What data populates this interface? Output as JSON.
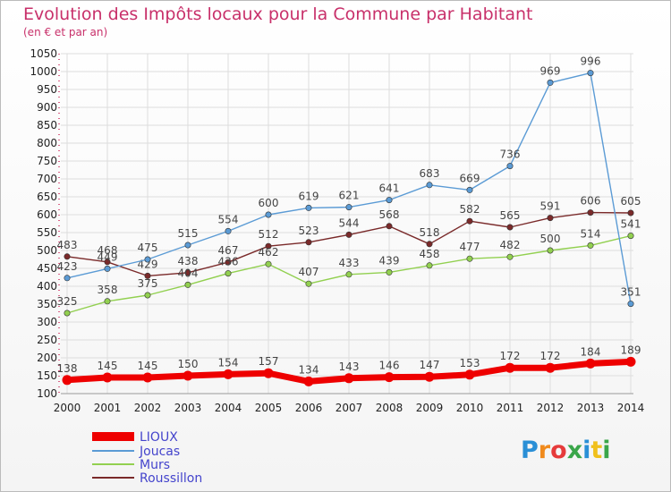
{
  "chart_data": {
    "type": "line",
    "title": "Evolution des Impôts locaux pour la Commune par Habitant",
    "subtitle": "(en € et par an)",
    "xlabel": "",
    "ylabel": "",
    "ylim": [
      100,
      1050
    ],
    "yticks": [
      100,
      150,
      200,
      250,
      300,
      350,
      400,
      450,
      500,
      550,
      600,
      650,
      700,
      750,
      800,
      850,
      900,
      950,
      1000,
      1050
    ],
    "x": [
      "2000",
      "2001",
      "2002",
      "2003",
      "2004",
      "2005",
      "2006",
      "2007",
      "2008",
      "2009",
      "2010",
      "2011",
      "2012",
      "2013",
      "2014"
    ],
    "series": [
      {
        "name": "LIOUX",
        "color": "#ee0000",
        "values": [
          138,
          145,
          145,
          150,
          154,
          157,
          134,
          143,
          146,
          147,
          153,
          172,
          172,
          184,
          189
        ]
      },
      {
        "name": "Joucas",
        "color": "#5b9bd5",
        "values": [
          423,
          449,
          475,
          515,
          554,
          600,
          619,
          621,
          641,
          683,
          669,
          736,
          969,
          996,
          351
        ]
      },
      {
        "name": "Murs",
        "color": "#92d050",
        "values": [
          325,
          358,
          375,
          404,
          436,
          462,
          407,
          433,
          439,
          458,
          477,
          482,
          500,
          514,
          541
        ]
      },
      {
        "name": "Roussillon",
        "color": "#7a2a2a",
        "values": [
          483,
          468,
          429,
          438,
          467,
          512,
          523,
          544,
          568,
          518,
          582,
          565,
          591,
          606,
          605
        ]
      }
    ]
  },
  "legend": [
    "LIOUX",
    "Joucas",
    "Murs",
    "Roussillon"
  ],
  "logo": {
    "letters": [
      "P",
      "r",
      "o",
      "x",
      "i",
      "t",
      "i"
    ]
  }
}
